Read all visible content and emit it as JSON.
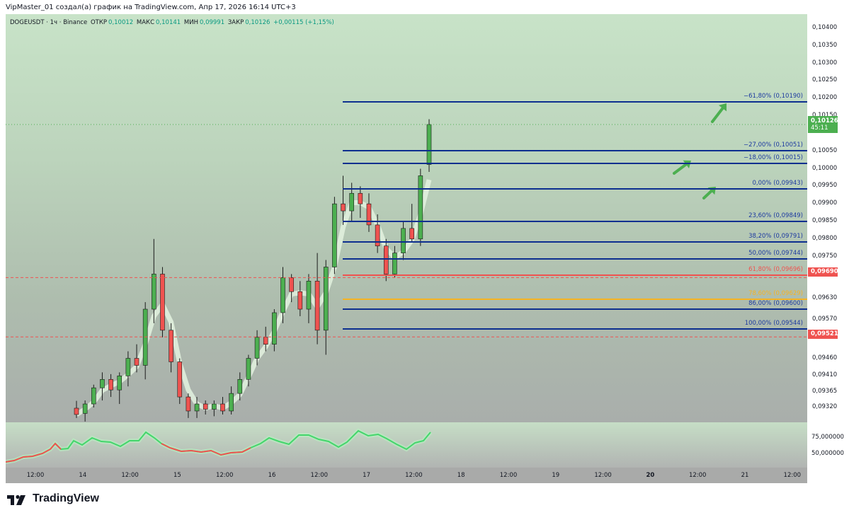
{
  "header": {
    "text": "VipMaster_01 создал(а) график на TradingView.com, Апр 17, 2026 16:14 UTC+3"
  },
  "symbol": {
    "name": "DOGEUSDT · 1ч · Binance",
    "open_label": "ОТКР",
    "open": "0,10012",
    "high_label": "МАКС",
    "high": "0,10141",
    "low_label": "МИН",
    "low": "0,09991",
    "close_label": "ЗАКР",
    "close": "0,10126",
    "change": "+0,00115 (+1,15%)"
  },
  "price_axis": {
    "labels": [
      "0,10400",
      "0,10350",
      "0,10300",
      "0,10250",
      "0,10200",
      "0,10150",
      "0,10050",
      "0,10000",
      "0,09950",
      "0,09900",
      "0,09850",
      "0,09800",
      "0,09750",
      "0,09630",
      "0,09570",
      "0,09460",
      "0,09410",
      "0,09365",
      "0,09320"
    ]
  },
  "last_price_tag": {
    "price": "0,10126",
    "countdown": "45:11"
  },
  "level_tags": [
    "0,09690",
    "0,09521"
  ],
  "fib_levels": [
    {
      "label": "−61,80% (0,10190)"
    },
    {
      "label": "−27,00% (0,10051)"
    },
    {
      "label": "−18,00% (0,10015)"
    },
    {
      "label": "0,00% (0,09943)"
    },
    {
      "label": "23,60% (0,09849)"
    },
    {
      "label": "38,20% (0,09791)"
    },
    {
      "label": "50,00% (0,09744)"
    },
    {
      "label": "61,80% (0,09696)"
    },
    {
      "label": "78,60% (0,09629)"
    },
    {
      "label": "86,00% (0,09600)"
    },
    {
      "label": "100,00% (0,09544)"
    }
  ],
  "indicator_axis": [
    "75,000000",
    "50,000000"
  ],
  "time_axis": [
    {
      "label": "12:00",
      "bold": false
    },
    {
      "label": "14",
      "bold": false
    },
    {
      "label": "12:00",
      "bold": false
    },
    {
      "label": "15",
      "bold": false
    },
    {
      "label": "12:00",
      "bold": false
    },
    {
      "label": "16",
      "bold": false
    },
    {
      "label": "12:00",
      "bold": false
    },
    {
      "label": "17",
      "bold": false
    },
    {
      "label": "12:00",
      "bold": false
    },
    {
      "label": "18",
      "bold": false
    },
    {
      "label": "12:00",
      "bold": false
    },
    {
      "label": "19",
      "bold": false
    },
    {
      "label": "12:00",
      "bold": false
    },
    {
      "label": "20",
      "bold": true
    },
    {
      "label": "12:00",
      "bold": false
    },
    {
      "label": "21",
      "bold": false
    },
    {
      "label": "12:00",
      "bold": false
    }
  ],
  "brand": {
    "name": "TradingView"
  },
  "colors": {
    "up": "#4caf50",
    "down": "#ef5350",
    "fib_line": "#0d2f8f",
    "fib_red": "#ef5350",
    "fib_orange": "#f5b323",
    "arrow": "#4caf50"
  },
  "chart_data": {
    "type": "candlestick",
    "symbol": "DOGEUSDT",
    "interval": "1ч",
    "exchange": "Binance",
    "y_range": [
      0.0929,
      0.1044
    ],
    "ohlc_sampled": [
      {
        "o": 0.09318,
        "h": 0.09339,
        "l": 0.0929,
        "c": 0.093
      },
      {
        "o": 0.09303,
        "h": 0.0934,
        "l": 0.0928,
        "c": 0.0933
      },
      {
        "o": 0.0933,
        "h": 0.09385,
        "l": 0.0932,
        "c": 0.09376
      },
      {
        "o": 0.09376,
        "h": 0.0942,
        "l": 0.0934,
        "c": 0.094
      },
      {
        "o": 0.094,
        "h": 0.09415,
        "l": 0.0935,
        "c": 0.0937
      },
      {
        "o": 0.0937,
        "h": 0.0942,
        "l": 0.0933,
        "c": 0.0941
      },
      {
        "o": 0.0941,
        "h": 0.0948,
        "l": 0.0938,
        "c": 0.0946
      },
      {
        "o": 0.0946,
        "h": 0.095,
        "l": 0.0942,
        "c": 0.0944
      },
      {
        "o": 0.0944,
        "h": 0.0962,
        "l": 0.094,
        "c": 0.096
      },
      {
        "o": 0.096,
        "h": 0.098,
        "l": 0.0956,
        "c": 0.097
      },
      {
        "o": 0.097,
        "h": 0.0972,
        "l": 0.0952,
        "c": 0.0954
      },
      {
        "o": 0.0954,
        "h": 0.0956,
        "l": 0.0942,
        "c": 0.0945
      },
      {
        "o": 0.0945,
        "h": 0.0946,
        "l": 0.0933,
        "c": 0.0935
      },
      {
        "o": 0.0935,
        "h": 0.0936,
        "l": 0.0929,
        "c": 0.0931
      },
      {
        "o": 0.0931,
        "h": 0.0935,
        "l": 0.0929,
        "c": 0.0933
      },
      {
        "o": 0.0933,
        "h": 0.0934,
        "l": 0.093,
        "c": 0.09315
      },
      {
        "o": 0.09315,
        "h": 0.0934,
        "l": 0.09295,
        "c": 0.0933
      },
      {
        "o": 0.0933,
        "h": 0.0935,
        "l": 0.093,
        "c": 0.0931
      },
      {
        "o": 0.0931,
        "h": 0.0938,
        "l": 0.093,
        "c": 0.0936
      },
      {
        "o": 0.0936,
        "h": 0.0942,
        "l": 0.0934,
        "c": 0.094
      },
      {
        "o": 0.094,
        "h": 0.0947,
        "l": 0.0938,
        "c": 0.0946
      },
      {
        "o": 0.0946,
        "h": 0.0954,
        "l": 0.0944,
        "c": 0.0952
      },
      {
        "o": 0.0952,
        "h": 0.0955,
        "l": 0.0948,
        "c": 0.095
      },
      {
        "o": 0.095,
        "h": 0.096,
        "l": 0.0948,
        "c": 0.0959
      },
      {
        "o": 0.0959,
        "h": 0.0972,
        "l": 0.0956,
        "c": 0.0969
      },
      {
        "o": 0.0969,
        "h": 0.097,
        "l": 0.0962,
        "c": 0.0965
      },
      {
        "o": 0.0965,
        "h": 0.0968,
        "l": 0.0958,
        "c": 0.096
      },
      {
        "o": 0.096,
        "h": 0.097,
        "l": 0.0956,
        "c": 0.0968
      },
      {
        "o": 0.0968,
        "h": 0.0976,
        "l": 0.095,
        "c": 0.0954
      },
      {
        "o": 0.0954,
        "h": 0.0974,
        "l": 0.0947,
        "c": 0.0972
      },
      {
        "o": 0.0972,
        "h": 0.0992,
        "l": 0.097,
        "c": 0.099
      },
      {
        "o": 0.099,
        "h": 0.0998,
        "l": 0.0984,
        "c": 0.0988
      },
      {
        "o": 0.0988,
        "h": 0.0996,
        "l": 0.0985,
        "c": 0.0993
      },
      {
        "o": 0.0993,
        "h": 0.0995,
        "l": 0.0986,
        "c": 0.099
      },
      {
        "o": 0.099,
        "h": 0.0993,
        "l": 0.0982,
        "c": 0.0984
      },
      {
        "o": 0.0984,
        "h": 0.0987,
        "l": 0.0976,
        "c": 0.0978
      },
      {
        "o": 0.0978,
        "h": 0.098,
        "l": 0.0968,
        "c": 0.097
      },
      {
        "o": 0.097,
        "h": 0.0978,
        "l": 0.0969,
        "c": 0.0976
      },
      {
        "o": 0.0976,
        "h": 0.0985,
        "l": 0.0974,
        "c": 0.0983
      },
      {
        "o": 0.0983,
        "h": 0.099,
        "l": 0.0979,
        "c": 0.098
      },
      {
        "o": 0.098,
        "h": 0.1,
        "l": 0.0978,
        "c": 0.0998
      },
      {
        "o": 0.10012,
        "h": 0.10141,
        "l": 0.09991,
        "c": 0.10126
      }
    ],
    "annotations": [
      "Fibonacci retracement (0,09544 → 0,09943)",
      "horizontal levels 0,09690 and 0,09521"
    ],
    "oscillator": {
      "levels": [
        75,
        50
      ]
    }
  }
}
